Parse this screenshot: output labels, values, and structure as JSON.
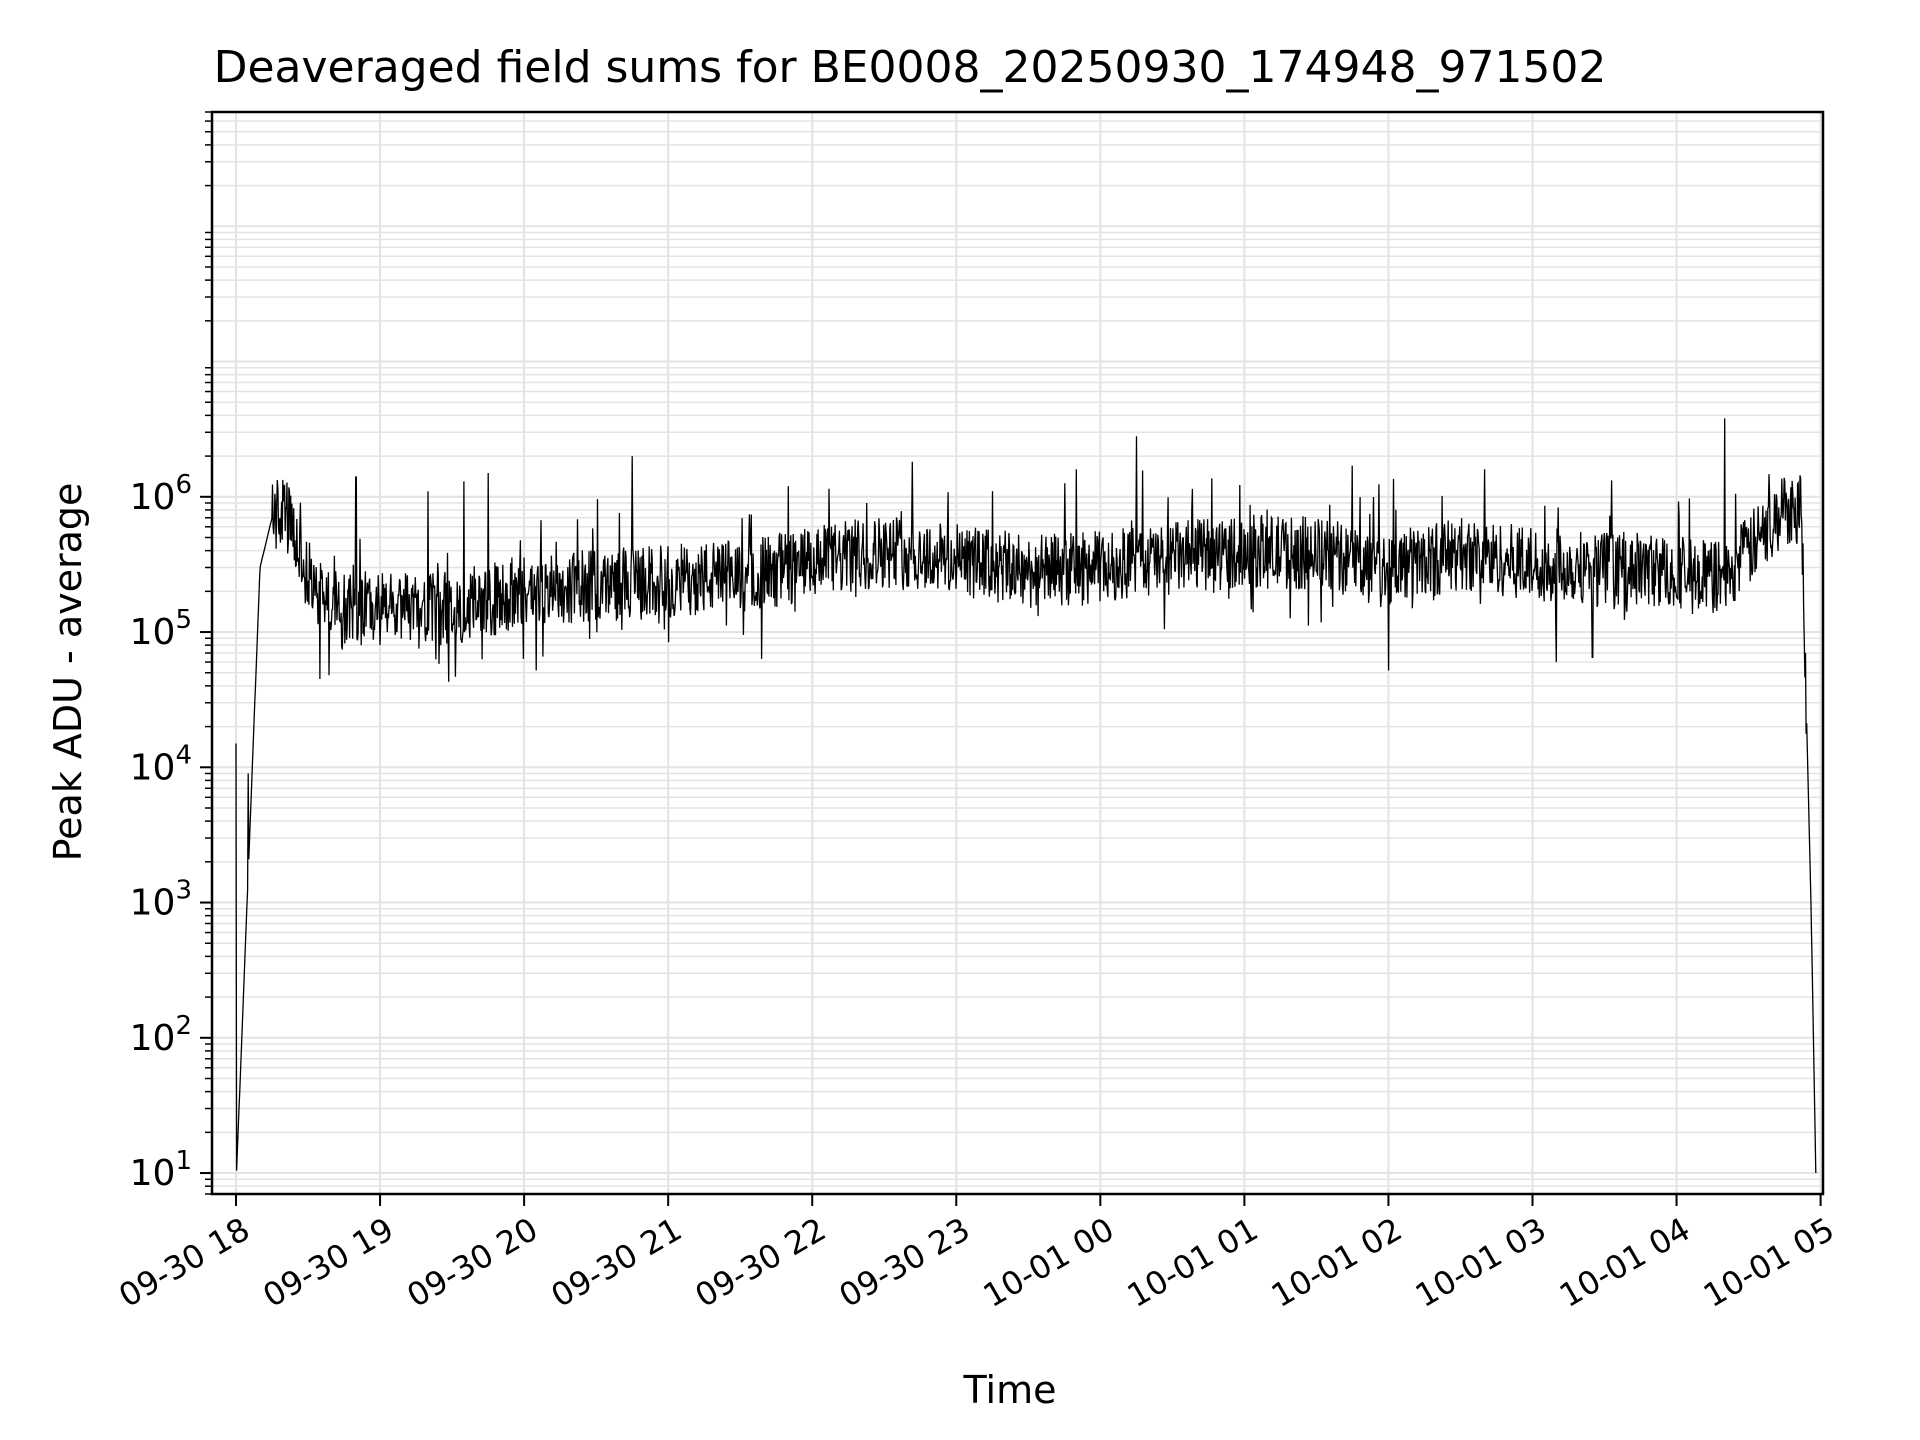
{
  "chart_data": {
    "type": "line",
    "title": "Deaveraged field sums for BE0008_20250930_174948_971502",
    "xlabel": "Time",
    "ylabel": "Peak ADU - average",
    "yscale": "log",
    "ylim": [
      7,
      700000000
    ],
    "xlim": [
      "2025-09-30 17:50",
      "2025-10-01 05:01"
    ],
    "grid": true,
    "x_ticks": [
      "09-30 18",
      "09-30 19",
      "09-30 20",
      "09-30 21",
      "09-30 22",
      "09-30 23",
      "10-01 00",
      "10-01 01",
      "10-01 02",
      "10-01 03",
      "10-01 04",
      "10-01 05"
    ],
    "y_ticks": [
      {
        "value": 10,
        "base": "10",
        "exp": "1"
      },
      {
        "value": 100,
        "base": "10",
        "exp": "2"
      },
      {
        "value": 1000,
        "base": "10",
        "exp": "3"
      },
      {
        "value": 10000,
        "base": "10",
        "exp": "4"
      },
      {
        "value": 100000,
        "base": "10",
        "exp": "5"
      },
      {
        "value": 1000000,
        "base": "10",
        "exp": "6"
      }
    ],
    "series": [
      {
        "color": "#000000",
        "x": [
          "2025-09-30 18:00",
          "2025-09-30 18:05",
          "2025-09-30 18:10",
          "2025-09-30 18:15",
          "2025-09-30 18:20",
          "2025-09-30 18:30",
          "2025-09-30 18:40",
          "2025-09-30 18:50",
          "2025-09-30 19:00",
          "2025-09-30 19:15",
          "2025-09-30 19:30",
          "2025-09-30 19:45",
          "2025-09-30 20:00",
          "2025-09-30 20:30",
          "2025-09-30 21:00",
          "2025-09-30 21:30",
          "2025-09-30 22:00",
          "2025-09-30 22:30",
          "2025-09-30 23:00",
          "2025-09-30 23:30",
          "2025-10-01 00:00",
          "2025-10-01 00:30",
          "2025-10-01 01:00",
          "2025-10-01 01:30",
          "2025-10-01 02:00",
          "2025-10-01 02:30",
          "2025-10-01 03:00",
          "2025-10-01 03:30",
          "2025-10-01 04:00",
          "2025-10-01 04:20",
          "2025-10-01 04:45",
          "2025-10-01 04:52",
          "2025-10-01 04:56",
          "2025-10-01 04:58"
        ],
        "y": [
          8,
          1500,
          300000,
          700000,
          800000,
          250000,
          160000,
          150000,
          150000,
          140000,
          150000,
          170000,
          200000,
          220000,
          240000,
          260000,
          320000,
          400000,
          340000,
          280000,
          300000,
          350000,
          400000,
          380000,
          300000,
          380000,
          320000,
          300000,
          280000,
          250000,
          800000,
          900000,
          1000,
          10
        ]
      }
    ],
    "spikes": [
      {
        "x": "2025-09-30 18:00",
        "y": 15000
      },
      {
        "x": "2025-09-30 18:05",
        "y": 9000
      },
      {
        "x": "2025-09-30 18:20",
        "y": 1200000
      },
      {
        "x": "2025-09-30 18:50",
        "y": 1400000
      },
      {
        "x": "2025-09-30 19:20",
        "y": 1100000
      },
      {
        "x": "2025-09-30 19:35",
        "y": 1300000
      },
      {
        "x": "2025-09-30 19:45",
        "y": 1500000
      },
      {
        "x": "2025-09-30 20:45",
        "y": 2000000
      },
      {
        "x": "2025-09-30 21:50",
        "y": 1200000
      },
      {
        "x": "2025-09-30 23:15",
        "y": 1100000
      },
      {
        "x": "2025-09-30 23:50",
        "y": 1600000
      },
      {
        "x": "2025-10-01 00:15",
        "y": 2800000
      },
      {
        "x": "2025-10-01 01:45",
        "y": 1700000
      },
      {
        "x": "2025-10-01 02:40",
        "y": 1600000
      },
      {
        "x": "2025-10-01 04:20",
        "y": 3800000
      },
      {
        "x": "2025-10-01 04:45",
        "y": 1300000
      }
    ],
    "dips": [
      {
        "x": "2025-09-30 18:35",
        "y": 45000
      },
      {
        "x": "2025-09-30 20:05",
        "y": 52000
      },
      {
        "x": "2025-10-01 02:00",
        "y": 52000
      },
      {
        "x": "2025-10-01 03:10",
        "y": 60000
      },
      {
        "x": "2025-10-01 03:25",
        "y": 65000
      }
    ]
  }
}
